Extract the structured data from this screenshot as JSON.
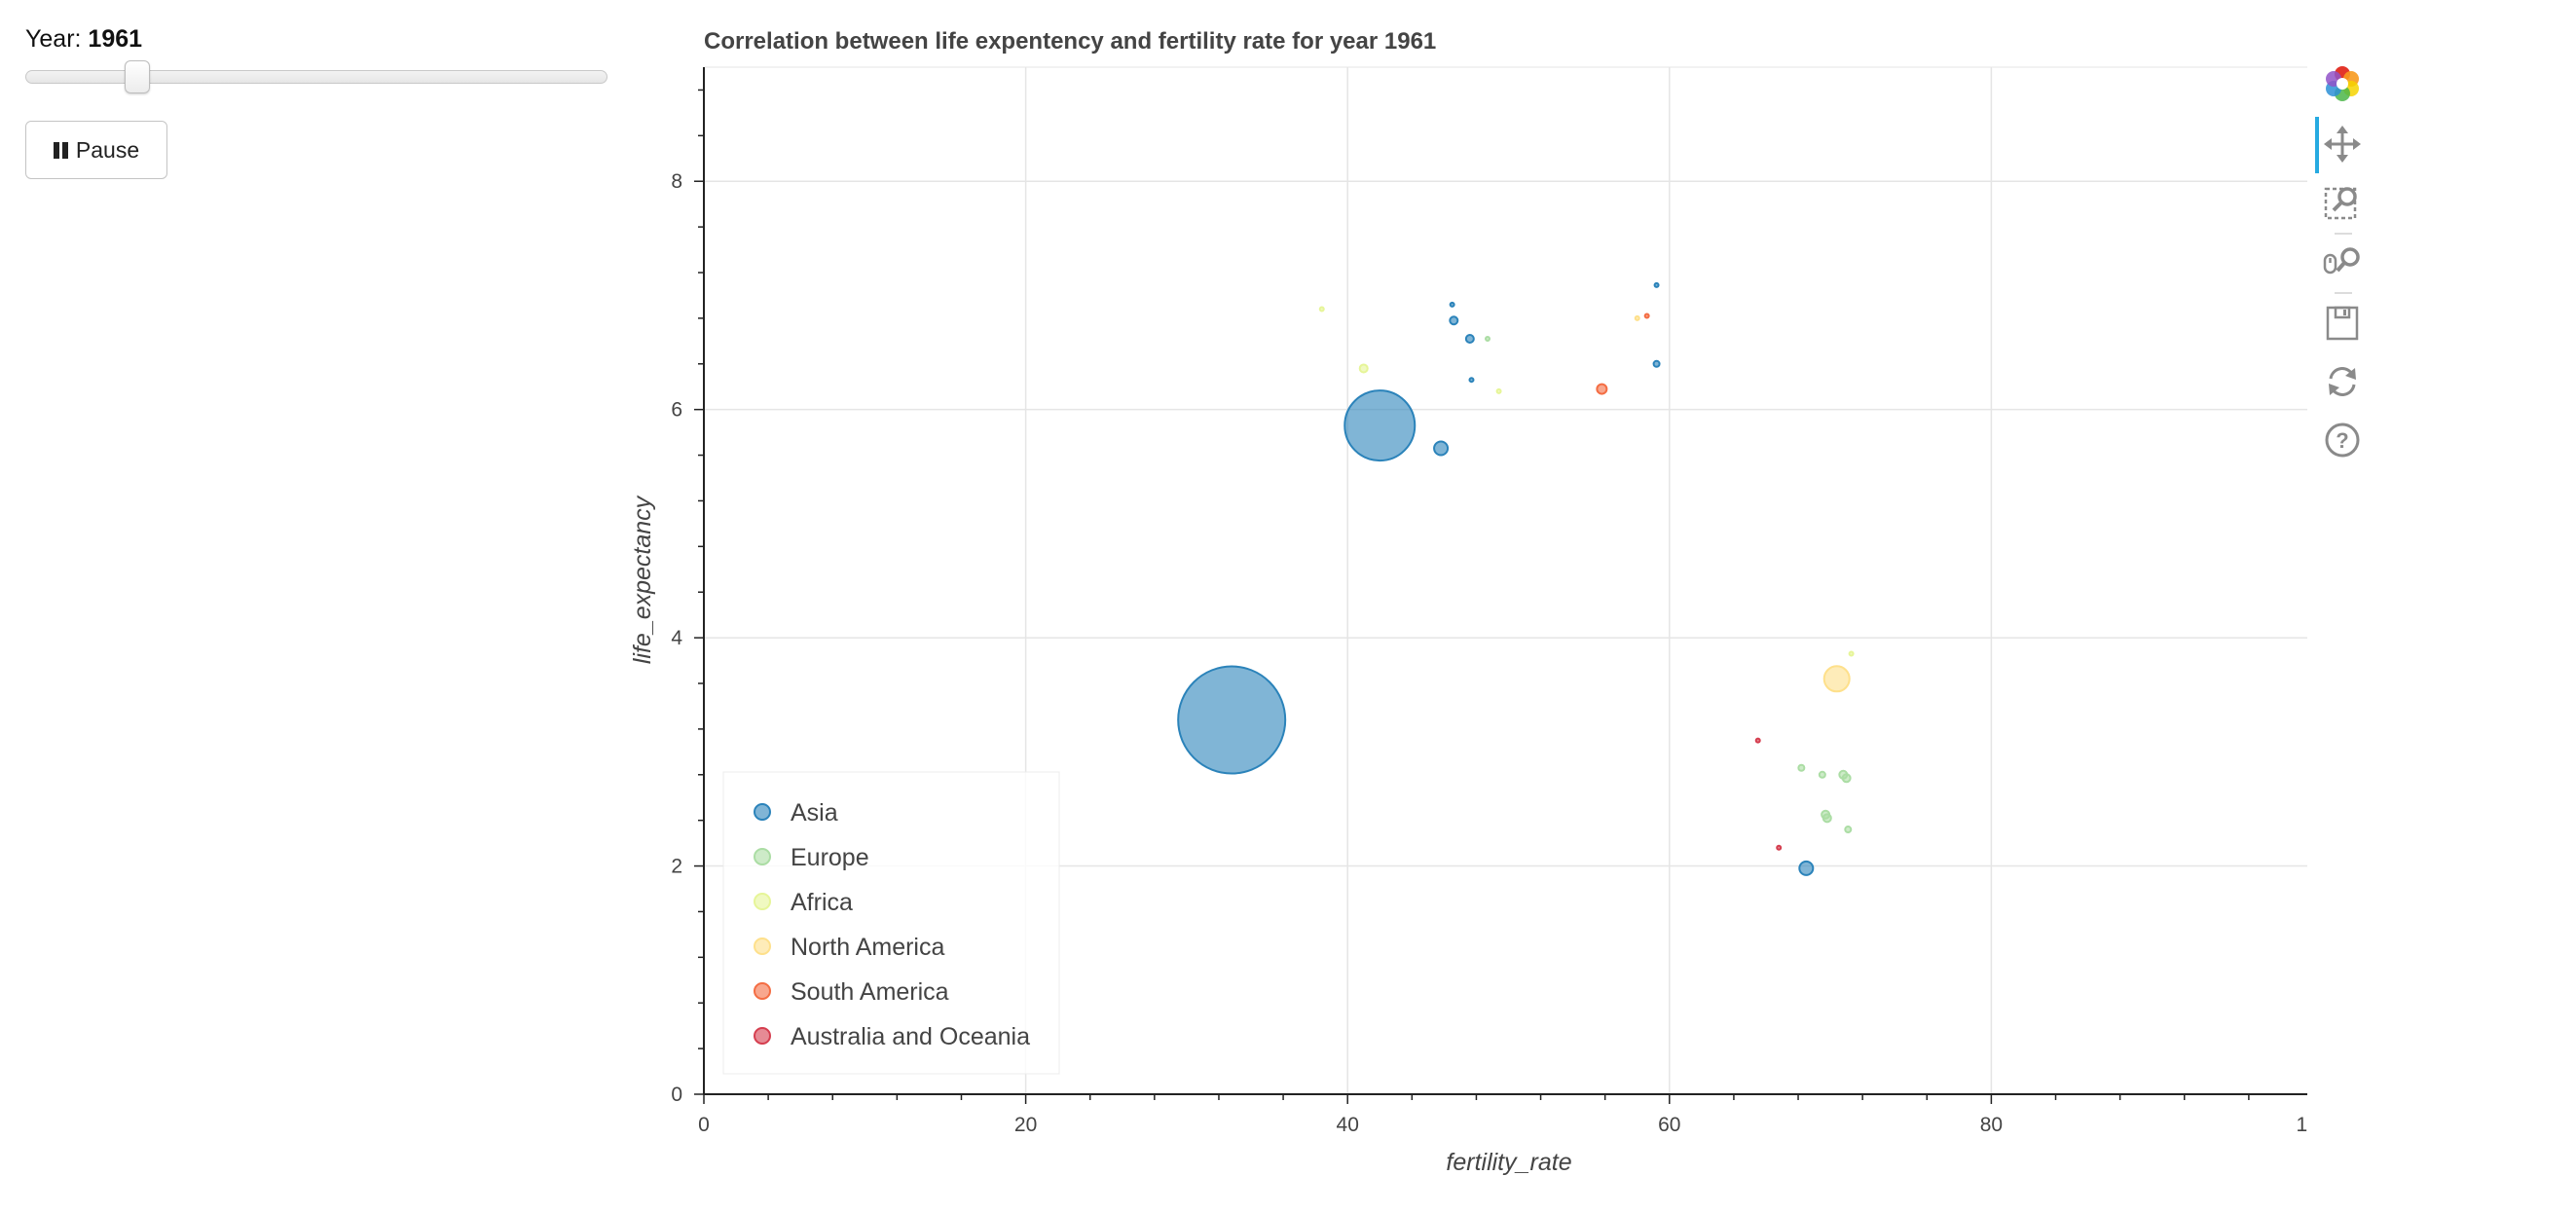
{
  "controls": {
    "year_prefix": "Year:",
    "year_value": "1961",
    "slider": {
      "min": 1960,
      "max": 2013,
      "value": 1961
    },
    "play_button_label": "Pause"
  },
  "toolbar": {
    "tools": [
      "bokeh-logo-icon",
      "pan-icon",
      "box-zoom-icon",
      "wheel-zoom-icon",
      "save-icon",
      "reset-icon",
      "help-icon"
    ],
    "active_color": "#26aae1"
  },
  "chart_data": {
    "type": "scatter",
    "title": "Correlation between life expentency and fertility rate for year 1961",
    "xlabel": "fertility_rate",
    "ylabel": "life_expectancy",
    "xlim": [
      0,
      100
    ],
    "ylim": [
      0,
      9
    ],
    "xticks": [
      0,
      20,
      40,
      60,
      80,
      100
    ],
    "yticks": [
      0,
      2,
      4,
      6,
      8
    ],
    "grid": true,
    "legend_position": "bottom-left",
    "series": [
      {
        "name": "Asia",
        "color": "#2b83ba",
        "points": [
          {
            "x": 32.8,
            "y": 3.28,
            "size": 55
          },
          {
            "x": 42.0,
            "y": 5.86,
            "size": 36
          },
          {
            "x": 45.8,
            "y": 5.66,
            "size": 7
          },
          {
            "x": 68.5,
            "y": 1.98,
            "size": 7
          },
          {
            "x": 47.6,
            "y": 6.62,
            "size": 4
          },
          {
            "x": 46.6,
            "y": 6.78,
            "size": 4
          },
          {
            "x": 59.2,
            "y": 6.4,
            "size": 3
          },
          {
            "x": 46.5,
            "y": 6.92,
            "size": 2
          },
          {
            "x": 59.2,
            "y": 7.09,
            "size": 2
          },
          {
            "x": 47.7,
            "y": 6.26,
            "size": 2
          }
        ]
      },
      {
        "name": "Europe",
        "color": "#abdda4",
        "points": [
          {
            "x": 70.8,
            "y": 2.8,
            "size": 4
          },
          {
            "x": 71.0,
            "y": 2.77,
            "size": 4
          },
          {
            "x": 69.7,
            "y": 2.45,
            "size": 4
          },
          {
            "x": 69.8,
            "y": 2.42,
            "size": 4
          },
          {
            "x": 68.2,
            "y": 2.86,
            "size": 3
          },
          {
            "x": 69.5,
            "y": 2.8,
            "size": 3
          },
          {
            "x": 71.1,
            "y": 2.32,
            "size": 3
          },
          {
            "x": 48.7,
            "y": 6.62,
            "size": 2
          }
        ]
      },
      {
        "name": "Africa",
        "color": "#e6f598",
        "points": [
          {
            "x": 41.0,
            "y": 6.36,
            "size": 4
          },
          {
            "x": 38.4,
            "y": 6.88,
            "size": 2
          },
          {
            "x": 49.4,
            "y": 6.16,
            "size": 2
          },
          {
            "x": 71.3,
            "y": 3.86,
            "size": 2
          }
        ]
      },
      {
        "name": "North America",
        "color": "#fee08b",
        "points": [
          {
            "x": 70.4,
            "y": 3.64,
            "size": 13
          },
          {
            "x": 58.0,
            "y": 6.8,
            "size": 2
          }
        ]
      },
      {
        "name": "South America",
        "color": "#f46d43",
        "points": [
          {
            "x": 55.8,
            "y": 6.18,
            "size": 5
          },
          {
            "x": 58.6,
            "y": 6.82,
            "size": 2
          }
        ]
      },
      {
        "name": "Australia and Oceania",
        "color": "#d53e4f",
        "points": [
          {
            "x": 65.5,
            "y": 3.1,
            "size": 2
          },
          {
            "x": 66.8,
            "y": 2.16,
            "size": 2
          }
        ]
      }
    ]
  }
}
